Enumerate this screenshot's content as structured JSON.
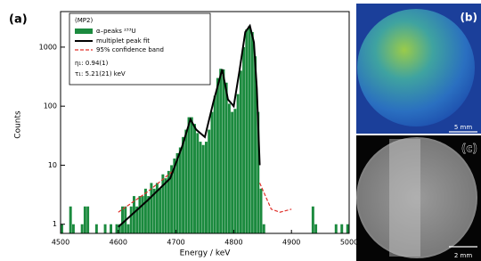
{
  "chart_data": {
    "type": "histogram",
    "panel_label": "(a)",
    "legend_title": "(MP2)",
    "name": "α–peaks ²³³U",
    "color": "#1b8a3e",
    "bins": [
      4500,
      4505,
      4510,
      4515,
      4520,
      4525,
      4530,
      4535,
      4540,
      4545,
      4550,
      4555,
      4560,
      4565,
      4570,
      4575,
      4580,
      4585,
      4590,
      4595,
      4600,
      4605,
      4610,
      4615,
      4620,
      4625,
      4630,
      4635,
      4640,
      4645,
      4650,
      4655,
      4660,
      4665,
      4670,
      4675,
      4680,
      4685,
      4690,
      4695,
      4700,
      4705,
      4710,
      4715,
      4720,
      4725,
      4730,
      4735,
      4740,
      4745,
      4750,
      4755,
      4760,
      4765,
      4770,
      4775,
      4780,
      4785,
      4790,
      4795,
      4800,
      4805,
      4810,
      4815,
      4820,
      4825,
      4830,
      4835,
      4840,
      4845,
      4850,
      4855,
      4860,
      4865,
      4870,
      4875,
      4880,
      4885,
      4890,
      4895,
      4900,
      4905,
      4910,
      4915,
      4920,
      4925,
      4930,
      4935,
      4940,
      4945,
      4950,
      4955,
      4960,
      4965,
      4970,
      4975,
      4980,
      4985,
      4990,
      4995,
      5000
    ],
    "counts": [
      1,
      0,
      0,
      2,
      1,
      0,
      0,
      1,
      2,
      2,
      0,
      0,
      1,
      0,
      0,
      1,
      0,
      1,
      0,
      1,
      1,
      2,
      2,
      1,
      2,
      3,
      2,
      3,
      3,
      4,
      3,
      5,
      4,
      5,
      4,
      7,
      6,
      8,
      10,
      13,
      16,
      20,
      30,
      40,
      65,
      65,
      50,
      35,
      25,
      22,
      25,
      40,
      80,
      150,
      300,
      430,
      420,
      250,
      110,
      80,
      90,
      160,
      400,
      1000,
      2000,
      2300,
      1800,
      700,
      80,
      4,
      1,
      0,
      0,
      0,
      0,
      0,
      0,
      0,
      0,
      0,
      0,
      0,
      0,
      0,
      0,
      0,
      0,
      2,
      1,
      0,
      0,
      0,
      0,
      0,
      0,
      1,
      0,
      1,
      0,
      1
    ],
    "fit": {
      "name": "multiplet peak fit",
      "color": "#000000",
      "x": [
        4600,
        4650,
        4690,
        4710,
        4725,
        4735,
        4750,
        4765,
        4780,
        4790,
        4800,
        4810,
        4820,
        4828,
        4835,
        4840,
        4845
      ],
      "y": [
        0.9,
        2.5,
        6,
        20,
        60,
        40,
        30,
        120,
        420,
        130,
        100,
        400,
        1800,
        2300,
        1200,
        200,
        10
      ]
    },
    "band": {
      "name": "95% confidence band",
      "color": "#e0302a",
      "x": [
        4600,
        4650,
        4695,
        4700,
        4845,
        4855,
        4865,
        4880,
        4900
      ],
      "y": [
        1.6,
        3.5,
        8,
        null,
        5,
        3,
        1.8,
        1.6,
        1.8
      ]
    },
    "annotations": [
      "η₁: 0.94(1)",
      "τ₁: 5.21(21) keV"
    ],
    "xlabel": "Energy / keV",
    "ylabel": "Counts",
    "xlim": [
      4500,
      5000
    ],
    "xticks": [
      4500,
      4600,
      4700,
      4800,
      4900,
      5000
    ],
    "ylim": [
      0.7,
      4000
    ],
    "yticks": [
      1,
      10,
      100,
      1000
    ],
    "yscale": "log"
  },
  "images": [
    {
      "label": "(b)",
      "scale_bar": "5 mm"
    },
    {
      "label": "(c)",
      "scale_bar": "2 mm"
    }
  ]
}
